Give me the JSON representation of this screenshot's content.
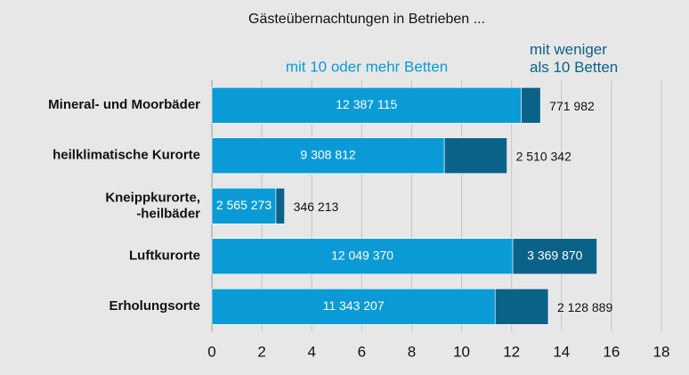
{
  "chart_data": {
    "type": "stacked_barh",
    "title": "Gästeübernachtungen in Betrieben ...",
    "categories": [
      "Mineral- und Moorbäder",
      "heilklimatische Kurorte",
      "Kneippkurorte,\n-heilbäder",
      "Luftkurorte",
      "Erholungsorte"
    ],
    "series": [
      {
        "name": "mit 10 oder mehr Betten",
        "color": "#0a9bd7",
        "values": [
          12.387115,
          9.308812,
          2.565273,
          12.04937,
          11.343207
        ],
        "value_labels": [
          "12 387 115",
          "9 308 812",
          "2 565 273",
          "12 049 370",
          "11 343 207"
        ]
      },
      {
        "name": "mit weniger\nals 10 Betten",
        "color": "#0b6288",
        "values": [
          0.771982,
          2.510342,
          0.346213,
          3.36987,
          2.128889
        ],
        "value_labels": [
          "771 982",
          "2 510 342",
          "346 213",
          "3 369 870",
          "2 128 889"
        ]
      }
    ],
    "xlim": [
      0,
      18
    ],
    "xticks": [
      0,
      2,
      4,
      6,
      8,
      10,
      12,
      14,
      16,
      18
    ],
    "grid": true
  }
}
